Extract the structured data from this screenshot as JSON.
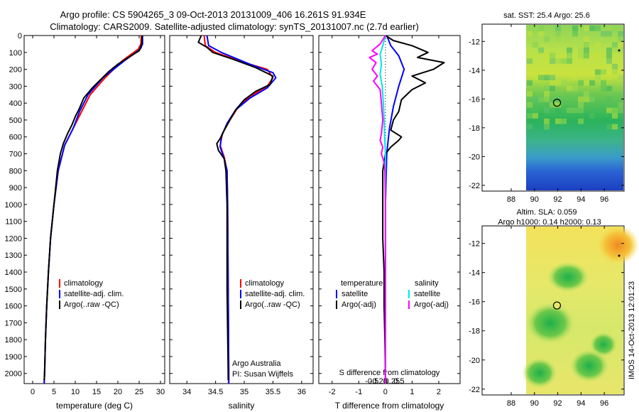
{
  "header": {
    "line1": "Argo profile: CS 5904265_3 09-Oct-2013 20131009_406 16.261S 91.934E",
    "line2": "Climatology: CARS2009. Satellite-adjusted climatology: synTS_20131007.nc (2.7d earlier)"
  },
  "colors": {
    "climatology": "#ff0000",
    "satellite": "#0000ff",
    "argo": "#000000",
    "salinity_sat": "#00e5ee",
    "salinity_argo": "#ff00ff"
  },
  "stamp": "IMOS 14-Oct-2013 12:01:23",
  "chart_data": [
    {
      "id": "temperature-panel",
      "type": "line",
      "xlabel": "temperature (deg C)",
      "ylabel": "depth",
      "xlim": [
        -2,
        31
      ],
      "ylim": [
        0,
        2060
      ],
      "xticks": [
        0,
        5,
        10,
        15,
        20,
        25,
        30
      ],
      "yticks": [
        0,
        100,
        200,
        300,
        400,
        500,
        600,
        700,
        800,
        900,
        1000,
        1100,
        1200,
        1300,
        1400,
        1500,
        1600,
        1700,
        1800,
        1900,
        2000
      ],
      "legend": [
        "climatology",
        "satellite-adj. clim.",
        "Argo(..raw -QC)"
      ],
      "series": [
        {
          "name": "climatology",
          "color": "#ff0000",
          "points": [
            [
              25.5,
              0
            ],
            [
              25.4,
              50
            ],
            [
              24.8,
              80
            ],
            [
              21,
              150
            ],
            [
              17,
              250
            ],
            [
              13.5,
              350
            ],
            [
              11.5,
              450
            ],
            [
              9.5,
              550
            ],
            [
              7.5,
              650
            ],
            [
              6,
              800
            ],
            [
              5,
              1000
            ],
            [
              4.2,
              1200
            ],
            [
              3.7,
              1400
            ],
            [
              3.3,
              1600
            ],
            [
              3,
              1800
            ],
            [
              2.8,
              2000
            ],
            [
              2.7,
              2060
            ]
          ]
        },
        {
          "name": "satellite-adj. clim.",
          "color": "#0000ff",
          "points": [
            [
              25.8,
              0
            ],
            [
              25.8,
              50
            ],
            [
              25.3,
              80
            ],
            [
              21.5,
              150
            ],
            [
              16.5,
              250
            ],
            [
              13,
              350
            ],
            [
              11,
              450
            ],
            [
              9.5,
              550
            ],
            [
              7.5,
              650
            ],
            [
              6,
              800
            ],
            [
              5,
              1000
            ],
            [
              4.2,
              1200
            ],
            [
              3.7,
              1400
            ],
            [
              3.3,
              1600
            ],
            [
              3,
              1800
            ],
            [
              2.8,
              2000
            ],
            [
              2.7,
              2060
            ]
          ]
        },
        {
          "name": "Argo(..raw -QC)",
          "color": "#000000",
          "points": [
            [
              25.7,
              0
            ],
            [
              25.6,
              50
            ],
            [
              25,
              90
            ],
            [
              22.5,
              130
            ],
            [
              20,
              170
            ],
            [
              18,
              210
            ],
            [
              16,
              260
            ],
            [
              14,
              310
            ],
            [
              12,
              370
            ],
            [
              11,
              430
            ],
            [
              10,
              480
            ],
            [
              9.2,
              530
            ],
            [
              8.2,
              580
            ],
            [
              7.2,
              640
            ],
            [
              6.5,
              700
            ],
            [
              5.8,
              800
            ],
            [
              5,
              1000
            ],
            [
              4.2,
              1200
            ],
            [
              3.7,
              1400
            ],
            [
              3.3,
              1600
            ],
            [
              3,
              1800
            ],
            [
              2.8,
              2000
            ],
            [
              2.7,
              2040
            ]
          ]
        }
      ]
    },
    {
      "id": "salinity-panel",
      "type": "line",
      "xlabel": "salinity",
      "xlim": [
        33.7,
        36.2
      ],
      "ylim": [
        0,
        2060
      ],
      "xticks": [
        34,
        34.5,
        35,
        35.5,
        36
      ],
      "legend": [
        "climatology",
        "satellite-adj. clim.",
        "Argo(..raw -QC)"
      ],
      "annotation": [
        "Argo Australia",
        "PI: Susan Wijffels"
      ],
      "series": [
        {
          "name": "climatology",
          "color": "#ff0000",
          "points": [
            [
              34.3,
              0
            ],
            [
              34.32,
              60
            ],
            [
              34.5,
              100
            ],
            [
              35,
              160
            ],
            [
              35.4,
              200
            ],
            [
              35.5,
              250
            ],
            [
              35.4,
              300
            ],
            [
              35.1,
              360
            ],
            [
              34.9,
              420
            ],
            [
              34.75,
              500
            ],
            [
              34.62,
              580
            ],
            [
              34.58,
              650
            ],
            [
              34.65,
              720
            ],
            [
              34.7,
              800
            ],
            [
              34.71,
              1000
            ],
            [
              34.72,
              1500
            ],
            [
              34.73,
              2000
            ],
            [
              34.73,
              2060
            ]
          ]
        },
        {
          "name": "satellite-adj. clim.",
          "color": "#0000ff",
          "points": [
            [
              34.35,
              0
            ],
            [
              34.38,
              60
            ],
            [
              34.6,
              100
            ],
            [
              35.1,
              170
            ],
            [
              35.5,
              220
            ],
            [
              35.55,
              250
            ],
            [
              35.4,
              310
            ],
            [
              35.1,
              370
            ],
            [
              34.85,
              440
            ],
            [
              34.7,
              520
            ],
            [
              34.6,
              600
            ],
            [
              34.58,
              660
            ],
            [
              34.65,
              730
            ],
            [
              34.7,
              800
            ],
            [
              34.71,
              1000
            ],
            [
              34.72,
              1500
            ],
            [
              34.73,
              2000
            ],
            [
              34.73,
              2060
            ]
          ]
        },
        {
          "name": "Argo(..raw -QC)",
          "color": "#000000",
          "points": [
            [
              34.25,
              0
            ],
            [
              34.2,
              40
            ],
            [
              34.35,
              70
            ],
            [
              34.45,
              100
            ],
            [
              34.8,
              140
            ],
            [
              35.2,
              190
            ],
            [
              35.5,
              240
            ],
            [
              35.45,
              290
            ],
            [
              35.2,
              330
            ],
            [
              35,
              380
            ],
            [
              34.85,
              440
            ],
            [
              34.75,
              500
            ],
            [
              34.65,
              560
            ],
            [
              34.58,
              610
            ],
            [
              34.52,
              640
            ],
            [
              34.55,
              680
            ],
            [
              34.65,
              730
            ],
            [
              34.68,
              800
            ],
            [
              34.7,
              1000
            ],
            [
              34.7,
              1500
            ],
            [
              34.72,
              2000
            ],
            [
              34.72,
              2040
            ]
          ]
        }
      ]
    },
    {
      "id": "difference-panel",
      "type": "line",
      "xlabel": "T difference from climatology",
      "x2label": "S difference from climatology",
      "xlim": [
        -2.5,
        2.8
      ],
      "ylim": [
        0,
        2060
      ],
      "xticks": [
        -2,
        -1,
        0,
        1,
        2
      ],
      "x2ticks": [
        -0.5,
        -0.25,
        0,
        0.25,
        0.5
      ],
      "legend_temperature": [
        "temperature",
        "satellite",
        "Argo(-adj)"
      ],
      "legend_salinity": [
        "salinity",
        "satellite",
        "Argo(-adj)"
      ],
      "series": [
        {
          "name": "T satellite",
          "color": "#0000ff",
          "points": [
            [
              0.05,
              0
            ],
            [
              0.2,
              60
            ],
            [
              0.5,
              120
            ],
            [
              0.7,
              200
            ],
            [
              0.5,
              300
            ],
            [
              0.3,
              420
            ],
            [
              0.15,
              550
            ],
            [
              0.05,
              700
            ],
            [
              0,
              1000
            ],
            [
              0,
              2060
            ]
          ]
        },
        {
          "name": "T Argo(-adj)",
          "color": "#000000",
          "points": [
            [
              0,
              0
            ],
            [
              0.3,
              30
            ],
            [
              1,
              60
            ],
            [
              1.6,
              100
            ],
            [
              1.2,
              130
            ],
            [
              2.2,
              160
            ],
            [
              1.8,
              200
            ],
            [
              1,
              240
            ],
            [
              1.5,
              280
            ],
            [
              1,
              320
            ],
            [
              0.6,
              380
            ],
            [
              0.5,
              450
            ],
            [
              0.3,
              500
            ],
            [
              0.2,
              560
            ],
            [
              0.6,
              600
            ],
            [
              0.5,
              620
            ],
            [
              0.2,
              660
            ],
            [
              0,
              700
            ],
            [
              -0.1,
              800
            ],
            [
              -0.1,
              1000
            ],
            [
              -0.1,
              1200
            ],
            [
              -0.05,
              1400
            ],
            [
              -0.05,
              1600
            ],
            [
              -0.02,
              1800
            ],
            [
              0,
              2000
            ],
            [
              0,
              2060
            ]
          ]
        },
        {
          "name": "S satellite",
          "color": "#00e5ee",
          "points": [
            [
              0,
              0
            ],
            [
              -0.1,
              60
            ],
            [
              -0.2,
              110
            ],
            [
              -0.15,
              170
            ],
            [
              -0.2,
              230
            ],
            [
              -0.12,
              300
            ],
            [
              -0.08,
              400
            ],
            [
              -0.05,
              500
            ],
            [
              -0.03,
              600
            ],
            [
              0,
              700
            ],
            [
              0,
              1000
            ],
            [
              0,
              2060
            ]
          ]
        },
        {
          "name": "S Argo(-adj)",
          "color": "#ff00ff",
          "points": [
            [
              0,
              0
            ],
            [
              -0.2,
              50
            ],
            [
              -0.5,
              90
            ],
            [
              -0.3,
              110
            ],
            [
              -0.6,
              130
            ],
            [
              -0.35,
              160
            ],
            [
              -0.5,
              200
            ],
            [
              -0.3,
              240
            ],
            [
              -0.45,
              270
            ],
            [
              -0.2,
              320
            ],
            [
              -0.15,
              400
            ],
            [
              -0.1,
              500
            ],
            [
              -0.15,
              580
            ],
            [
              -0.2,
              620
            ],
            [
              -0.1,
              660
            ],
            [
              -0.15,
              700
            ],
            [
              -0.05,
              750
            ],
            [
              -0.02,
              800
            ],
            [
              0,
              1000
            ],
            [
              0,
              2060
            ]
          ]
        }
      ]
    }
  ],
  "maps": [
    {
      "id": "sst-map",
      "title": "sat. SST: 25.4 Argo: 25.6",
      "xlim": [
        85.5,
        97.7
      ],
      "ylim": [
        -22.4,
        -10.8
      ],
      "xticks": [
        88,
        90,
        92,
        94,
        96
      ],
      "yticks": [
        -12,
        -14,
        -16,
        -18,
        -20,
        -22
      ],
      "argo_position": [
        91.934,
        -16.261
      ]
    },
    {
      "id": "sla-map",
      "title_line1": "Altim. SLA: 0.059",
      "title_line2": "Argo h1000: 0.14 h2000: 0.13",
      "xlim": [
        85.5,
        97.7
      ],
      "ylim": [
        -22.4,
        -10.8
      ],
      "xticks": [
        88,
        90,
        92,
        94,
        96
      ],
      "yticks": [
        -12,
        -14,
        -16,
        -18,
        -20,
        -22
      ],
      "argo_position": [
        91.934,
        -16.261
      ]
    }
  ]
}
